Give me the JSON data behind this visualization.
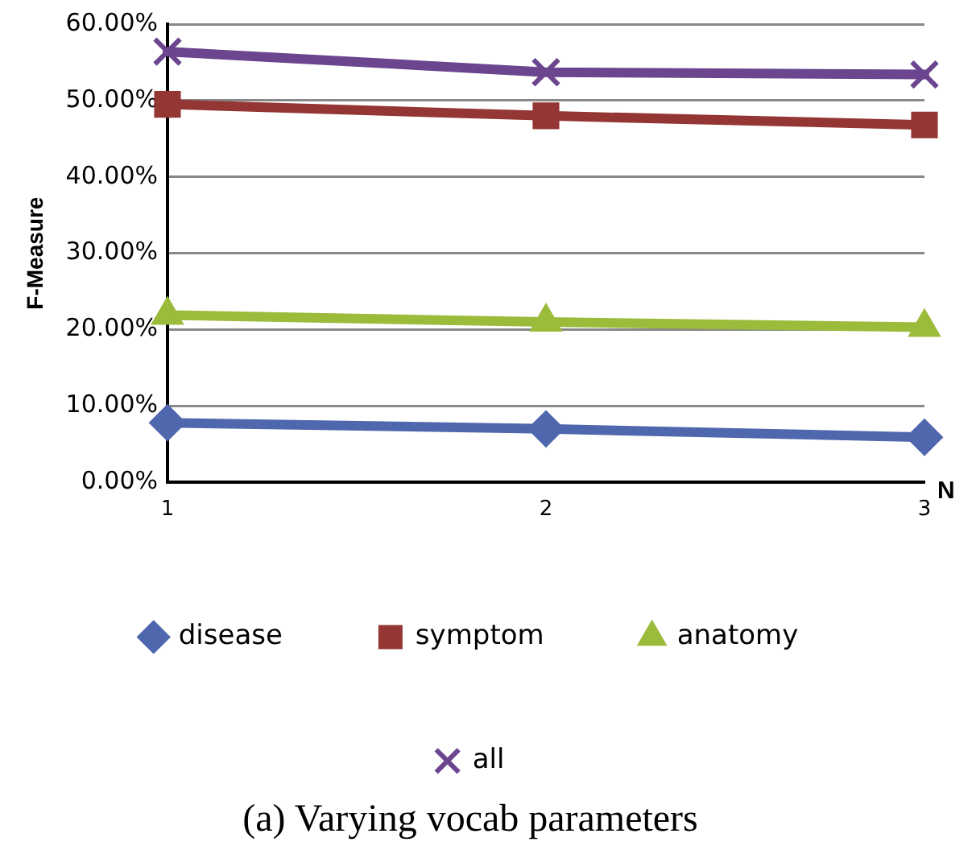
{
  "chart_data": {
    "type": "line",
    "title": "(a) Varying vocab parameters",
    "xlabel": "N",
    "ylabel": "F-Measure",
    "categories": [
      "1",
      "2",
      "3"
    ],
    "series": [
      {
        "name": "disease",
        "color": "#4f67ad",
        "marker": "diamond",
        "values": [
          7.8,
          7.0,
          5.9
        ]
      },
      {
        "name": "symptom",
        "color": "#943634",
        "marker": "square",
        "values": [
          49.5,
          48.0,
          46.8
        ]
      },
      {
        "name": "anatomy",
        "color": "#9bbb3b",
        "marker": "triangle",
        "values": [
          21.9,
          21.0,
          20.3
        ]
      },
      {
        "name": "all",
        "color": "#6b468f",
        "marker": "cross",
        "values": [
          56.4,
          53.7,
          53.4
        ]
      }
    ],
    "ylim": [
      0,
      60
    ],
    "yticks": [
      {
        "value": 0,
        "label": "0.00%"
      },
      {
        "value": 10,
        "label": "10.00%"
      },
      {
        "value": 20,
        "label": "20.00%"
      },
      {
        "value": 30,
        "label": "30.00%"
      },
      {
        "value": 40,
        "label": "40.00%"
      },
      {
        "value": 50,
        "label": "50.00%"
      },
      {
        "value": 60,
        "label": "60.00%"
      }
    ],
    "grid": "y",
    "legend": "bottom",
    "line_style": "solid"
  }
}
